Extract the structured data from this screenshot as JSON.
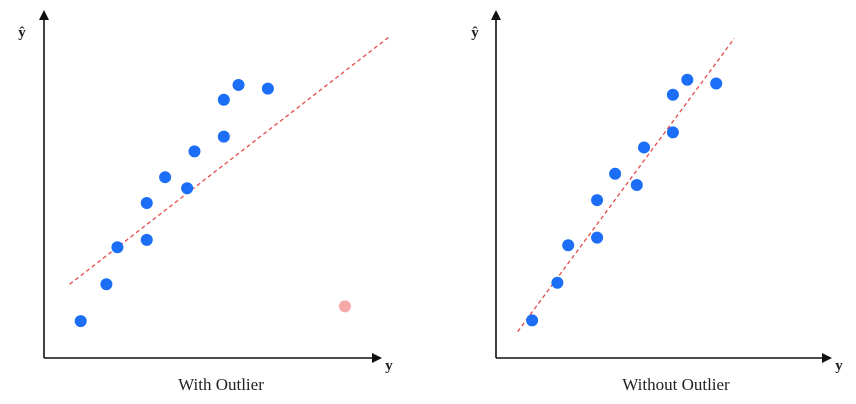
{
  "chart_data": [
    {
      "type": "scatter",
      "caption": "With Outlier",
      "xlabel": "y",
      "ylabel": "ŷ",
      "grid": false,
      "points": [
        {
          "x": 1.0,
          "y": 1.0
        },
        {
          "x": 1.7,
          "y": 2.0
        },
        {
          "x": 2.0,
          "y": 3.0
        },
        {
          "x": 2.8,
          "y": 3.2
        },
        {
          "x": 2.8,
          "y": 4.2
        },
        {
          "x": 3.3,
          "y": 4.9
        },
        {
          "x": 3.9,
          "y": 4.6
        },
        {
          "x": 4.1,
          "y": 5.6
        },
        {
          "x": 4.9,
          "y": 6.0
        },
        {
          "x": 4.9,
          "y": 7.0
        },
        {
          "x": 5.3,
          "y": 7.4
        },
        {
          "x": 6.1,
          "y": 7.3
        }
      ],
      "outliers": [
        {
          "x": 8.2,
          "y": 1.4
        }
      ],
      "fit_line": {
        "x": [
          0.7,
          9.4
        ],
        "y": [
          2.0,
          8.7
        ]
      },
      "xlim": [
        0,
        10
      ],
      "ylim": [
        0,
        9
      ],
      "colors": {
        "points": "#1b6ef5",
        "outlier": "#f4a8a8",
        "fit": "#e44b4b",
        "axis": "#111111"
      }
    },
    {
      "type": "scatter",
      "caption": "Without Outlier",
      "xlabel": "y",
      "ylabel": "ŷ",
      "grid": false,
      "points": [
        {
          "x": 1.0,
          "y": 1.0
        },
        {
          "x": 1.7,
          "y": 2.0
        },
        {
          "x": 2.0,
          "y": 3.0
        },
        {
          "x": 2.8,
          "y": 3.2
        },
        {
          "x": 2.8,
          "y": 4.2
        },
        {
          "x": 3.3,
          "y": 4.9
        },
        {
          "x": 3.9,
          "y": 4.6
        },
        {
          "x": 4.1,
          "y": 5.6
        },
        {
          "x": 4.9,
          "y": 6.0
        },
        {
          "x": 4.9,
          "y": 7.0
        },
        {
          "x": 5.3,
          "y": 7.4
        },
        {
          "x": 6.1,
          "y": 7.3
        }
      ],
      "outliers": [],
      "fit_line": {
        "x": [
          0.6,
          6.6
        ],
        "y": [
          0.7,
          8.5
        ]
      },
      "xlim": [
        0,
        10
      ],
      "ylim": [
        0,
        9
      ],
      "colors": {
        "points": "#1b6ef5",
        "outlier": "#f4a8a8",
        "fit": "#e44b4b",
        "axis": "#111111"
      }
    }
  ]
}
